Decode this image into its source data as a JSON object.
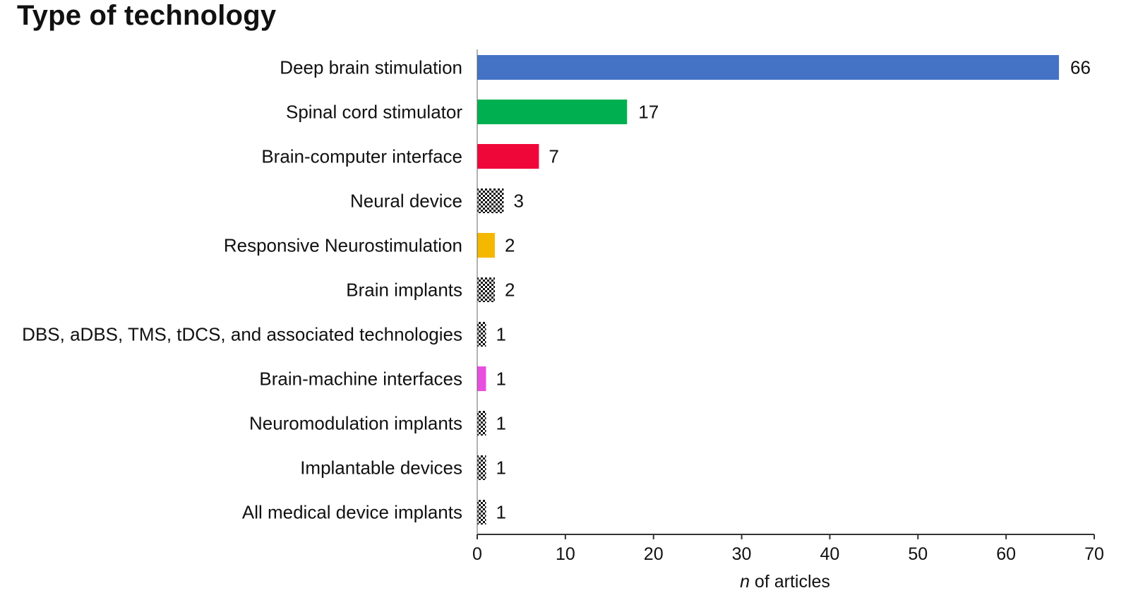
{
  "chart_data": {
    "type": "bar",
    "orientation": "horizontal",
    "title": "Type of technology",
    "xlabel_italic": "n",
    "xlabel_rest": " of articles",
    "xlim": [
      0,
      70
    ],
    "xticks": [
      0,
      10,
      20,
      30,
      40,
      50,
      60,
      70
    ],
    "grid": false,
    "categories": [
      "Deep brain stimulation",
      "Spinal cord stimulator",
      "Brain-computer interface",
      "Neural device",
      "Responsive Neurostimulation",
      "Brain implants",
      "DBS, aDBS, TMS, tDCS, and associated technologies",
      "Brain-machine interfaces",
      "Neuromodulation implants",
      "Implantable devices",
      "All medical device implants"
    ],
    "values": [
      66,
      17,
      7,
      3,
      2,
      2,
      1,
      1,
      1,
      1,
      1
    ],
    "bar_fills": [
      "#4472C4",
      "#00B050",
      "#F0073A",
      "checker",
      "#F5B800",
      "checker",
      "checker",
      "#E84FE0",
      "checker",
      "checker",
      "checker"
    ]
  }
}
